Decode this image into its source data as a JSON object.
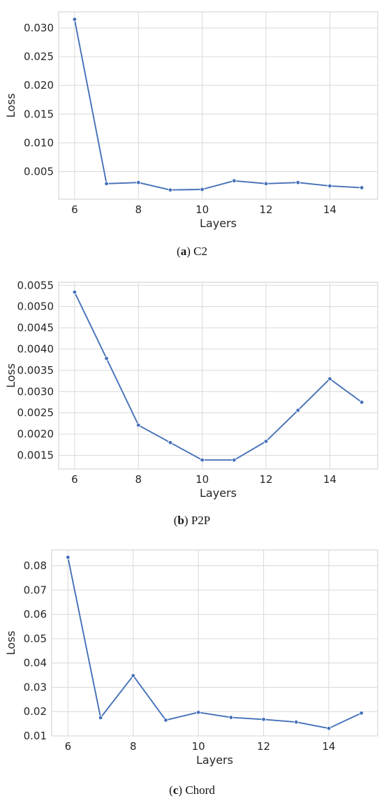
{
  "chart_data": [
    {
      "type": "line",
      "x": [
        6,
        7,
        8,
        9,
        10,
        11,
        12,
        13,
        14,
        15
      ],
      "series": [
        {
          "values": [
            0.0315,
            0.0029,
            0.0031,
            0.0018,
            0.0019,
            0.0034,
            0.0029,
            0.0031,
            0.0025,
            0.0022
          ]
        }
      ],
      "xlabel": "Layers",
      "ylabel": "Loss",
      "xlim": [
        5.5,
        15.5
      ],
      "ylim": [
        0.0002,
        0.0328
      ],
      "xticks": [
        "6",
        "8",
        "10",
        "12",
        "14"
      ],
      "yticks": [
        "0.005",
        "0.010",
        "0.015",
        "0.020",
        "0.025",
        "0.030"
      ],
      "grid": true,
      "line_color": "#4470b8",
      "caption": {
        "letter": "a",
        "text": "C2"
      }
    },
    {
      "type": "line",
      "x": [
        6,
        7,
        8,
        9,
        10,
        11,
        12,
        13,
        14,
        15
      ],
      "series": [
        {
          "values": [
            0.00534,
            0.00378,
            0.00221,
            0.0018,
            0.00139,
            0.00139,
            0.00183,
            0.00256,
            0.0033,
            0.00275
          ]
        }
      ],
      "xlabel": "Layers",
      "ylabel": "Loss",
      "xlim": [
        5.5,
        15.5
      ],
      "ylim": [
        0.00118,
        0.00557
      ],
      "xticks": [
        "6",
        "8",
        "10",
        "12",
        "14"
      ],
      "yticks": [
        "0.0015",
        "0.0020",
        "0.0025",
        "0.0030",
        "0.0035",
        "0.0040",
        "0.0045",
        "0.0050",
        "0.0055"
      ],
      "grid": true,
      "line_color": "#4470b8",
      "caption": {
        "letter": "b",
        "text": "P2P"
      }
    },
    {
      "type": "line",
      "x": [
        6,
        7,
        8,
        9,
        10,
        11,
        12,
        13,
        14,
        15
      ],
      "series": [
        {
          "values": [
            0.0835,
            0.0175,
            0.0348,
            0.0165,
            0.0197,
            0.0176,
            0.0168,
            0.0157,
            0.0131,
            0.0194
          ]
        }
      ],
      "xlabel": "Layers",
      "ylabel": "Loss",
      "xlim": [
        5.5,
        15.5
      ],
      "ylim": [
        0.01,
        0.0865
      ],
      "xticks": [
        "6",
        "8",
        "10",
        "12",
        "14"
      ],
      "yticks": [
        "0.01",
        "0.02",
        "0.03",
        "0.04",
        "0.05",
        "0.06",
        "0.07",
        "0.08"
      ],
      "grid": true,
      "line_color": "#4470b8",
      "caption": {
        "letter": "c",
        "text": "Chord"
      }
    }
  ]
}
